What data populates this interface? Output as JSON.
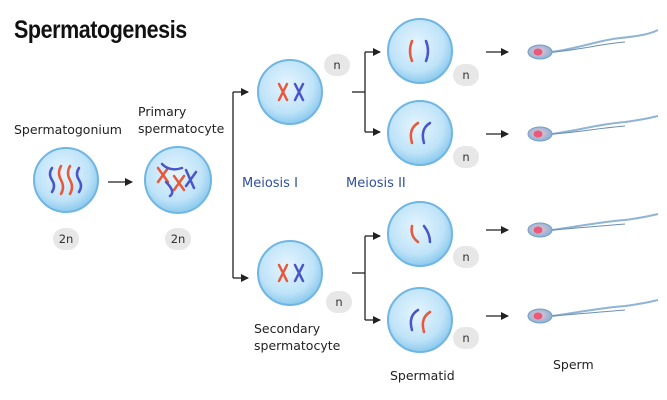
{
  "title": "Spermatogenesis",
  "labels": {
    "spermatogonium": "Spermatogonium",
    "primary_line1": "Primary",
    "primary_line2": "spermatocyte",
    "meiosis1": "Meiosis I",
    "meiosis2": "Meiosis II",
    "secondary_line1": "Secondary",
    "secondary_line2": "spermatocyte",
    "spermatid": "Spermatid",
    "sperm": "Sperm"
  },
  "ploidy": {
    "spermatogonium": "2n",
    "primary": "2n",
    "secondary_top": "n",
    "secondary_bottom": "n",
    "spermatid_1": "n",
    "spermatid_2": "n",
    "spermatid_3": "n",
    "spermatid_4": "n"
  },
  "colors": {
    "cell_fill": "#bfe3f8",
    "cell_edge": "#6fb6e4",
    "chromosome_red": "#e8583a",
    "chromosome_blue": "#4a55c8",
    "sperm_head": "#f0a0b0",
    "sperm_tail": "#8fb4d4",
    "meiosis_label": "#2f4fa0"
  }
}
